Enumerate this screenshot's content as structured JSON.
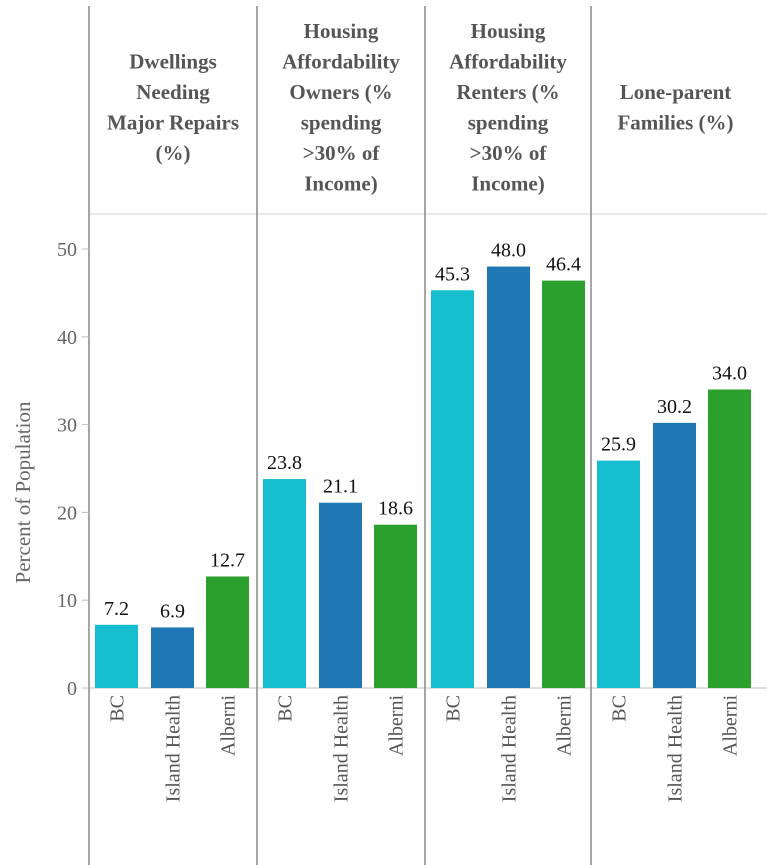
{
  "chart_data": {
    "type": "bar",
    "ylabel": "Percent of Population",
    "ylim": [
      0,
      50
    ],
    "yticks": [
      0,
      10,
      20,
      30,
      40,
      50
    ],
    "categories": [
      "BC",
      "Island Health",
      "Alberni"
    ],
    "category_colors": [
      "#17becf",
      "#1f77b4",
      "#2ca02c"
    ],
    "panels": [
      {
        "title_lines": [
          "Dwellings",
          "Needing",
          "Major Repairs",
          "(%)"
        ],
        "values": [
          7.2,
          6.9,
          12.7
        ]
      },
      {
        "title_lines": [
          "Housing",
          "Affordability",
          "Owners (%",
          "spending",
          ">30% of",
          "Income)"
        ],
        "values": [
          23.8,
          21.1,
          18.6
        ]
      },
      {
        "title_lines": [
          "Housing",
          "Affordability",
          "Renters (%",
          "spending",
          ">30% of",
          "Income)"
        ],
        "values": [
          45.3,
          48.0,
          46.4
        ]
      },
      {
        "title_lines": [
          "Lone-parent",
          "Families (%)"
        ],
        "values": [
          25.9,
          30.2,
          34.0
        ]
      }
    ],
    "grid": false,
    "legend": "none"
  }
}
